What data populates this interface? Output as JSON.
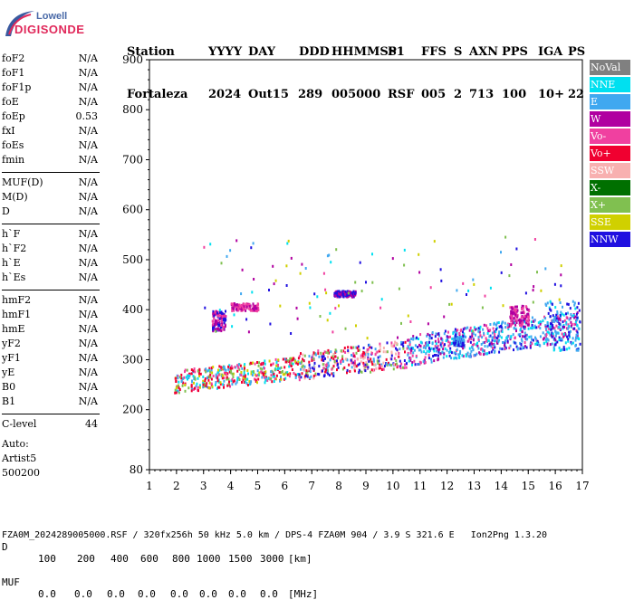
{
  "logo": {
    "line1": "Lowell",
    "line2": "DIGISONDE"
  },
  "header": {
    "labels": [
      "Station",
      "YYYY",
      "DAY",
      "DDD",
      "HHMMSS",
      "P1",
      "FFS",
      "S",
      "AXN",
      "PPS",
      "IGA",
      "PS"
    ],
    "values": [
      "Fortaleza",
      "2024",
      "Out15",
      "289",
      "005000",
      "RSF",
      "005",
      "2",
      "713",
      "100",
      "10+",
      "22"
    ]
  },
  "params": {
    "group1": [
      {
        "name": "foF2",
        "value": "N/A"
      },
      {
        "name": "foF1",
        "value": "N/A"
      },
      {
        "name": "foF1p",
        "value": "N/A"
      },
      {
        "name": "foE",
        "value": "N/A"
      },
      {
        "name": "foEp",
        "value": "0.53"
      },
      {
        "name": "fxI",
        "value": "N/A"
      },
      {
        "name": "foEs",
        "value": "N/A"
      },
      {
        "name": "fmin",
        "value": "N/A"
      }
    ],
    "group2": [
      {
        "name": "MUF(D)",
        "value": "N/A"
      },
      {
        "name": "M(D)",
        "value": "N/A"
      },
      {
        "name": "D",
        "value": "N/A"
      }
    ],
    "group3": [
      {
        "name": "h`F",
        "value": "N/A"
      },
      {
        "name": "h`F2",
        "value": "N/A"
      },
      {
        "name": "h`E",
        "value": "N/A"
      },
      {
        "name": "h`Es",
        "value": "N/A"
      }
    ],
    "group4": [
      {
        "name": "hmF2",
        "value": "N/A"
      },
      {
        "name": "hmF1",
        "value": "N/A"
      },
      {
        "name": "hmE",
        "value": "N/A"
      },
      {
        "name": "yF2",
        "value": "N/A"
      },
      {
        "name": "yF1",
        "value": "N/A"
      },
      {
        "name": "yE",
        "value": "N/A"
      },
      {
        "name": "B0",
        "value": "N/A"
      },
      {
        "name": "B1",
        "value": "N/A"
      }
    ],
    "group5": [
      {
        "name": "C-level",
        "value": "44"
      }
    ],
    "autoscale": [
      "Auto:",
      "Artist5",
      "500200"
    ]
  },
  "legend": [
    {
      "label": "NoVal",
      "color": "#808080"
    },
    {
      "label": "NNE",
      "color": "#00e0f0"
    },
    {
      "label": "E",
      "color": "#40a8f0"
    },
    {
      "label": "W",
      "color": "#b000a0"
    },
    {
      "label": "Vo-",
      "color": "#f040a0"
    },
    {
      "label": "Vo+",
      "color": "#f00030"
    },
    {
      "label": "SSW",
      "color": "#f8b0b0"
    },
    {
      "label": "X-",
      "color": "#007000"
    },
    {
      "label": "X+",
      "color": "#80c050"
    },
    {
      "label": "SSE",
      "color": "#d0d000"
    },
    {
      "label": "NNW",
      "color": "#2010e0"
    }
  ],
  "chart_data": {
    "type": "scatter",
    "title": "",
    "xlabel": "",
    "ylabel": "",
    "xlim": [
      1,
      17
    ],
    "ylim": [
      80,
      900
    ],
    "x_ticks": [
      1,
      2,
      3,
      4,
      5,
      6,
      7,
      8,
      9,
      10,
      11,
      12,
      13,
      14,
      15,
      16,
      17
    ],
    "y_ticks": [
      80,
      200,
      300,
      400,
      500,
      600,
      700,
      800,
      900
    ],
    "grid": false,
    "legend_position": "right",
    "clusters": [
      {
        "name": "F-trace low",
        "x_range": [
          1.8,
          6.5
        ],
        "y_range": [
          232,
          300
        ],
        "dominant": [
          "Vo+",
          "E",
          "X+",
          "SSE"
        ]
      },
      {
        "name": "F-trace mid",
        "x_range": [
          6.5,
          10.5
        ],
        "y_range": [
          250,
          330
        ],
        "dominant": [
          "Vo+",
          "Vo-",
          "E"
        ]
      },
      {
        "name": "F-trace high",
        "x_range": [
          10.5,
          17
        ],
        "y_range": [
          290,
          430
        ],
        "dominant": [
          "E",
          "NNE",
          "NNW",
          "W"
        ]
      },
      {
        "name": "spread echoes",
        "x_range": [
          2.5,
          16.5
        ],
        "y_range": [
          330,
          550
        ],
        "dominant": [
          "W",
          "NNW",
          "NNE"
        ]
      }
    ]
  },
  "footer": {
    "row1_label": "D",
    "row1_values": [
      "100",
      "200",
      "400",
      "600",
      "800",
      "1000",
      "1500",
      "3000",
      "[km]"
    ],
    "row2_label": "MUF",
    "row2_values": [
      "0.0",
      "0.0",
      "0.0",
      "0.0",
      "0.0",
      "0.0",
      "0.0",
      "0.0",
      "[MHz]"
    ],
    "fileinfo": "FZA0M_2024289005000.RSF / 320fx256h 50 kHz 5.0 km / DPS-4 FZA0M 904 / 3.9 S 321.6 E   Ion2Png 1.3.20"
  }
}
